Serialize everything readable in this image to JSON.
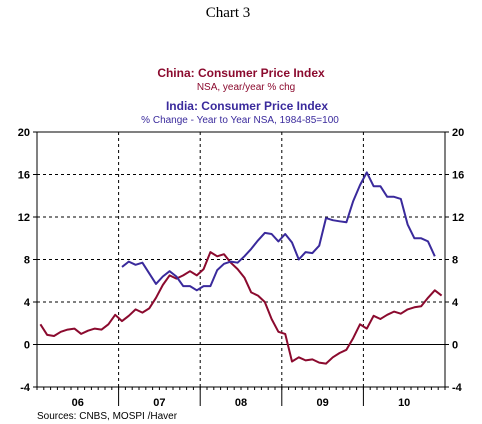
{
  "page_title": "Chart 3",
  "source": "Sources: CNBS, MOSPI /Haver",
  "colors": {
    "china": "#8b0a2e",
    "india": "#3a2a9c",
    "grid": "#000000",
    "background": "#ffffff"
  },
  "chart_data": {
    "type": "line",
    "title": "Chart 3",
    "legend_placement": "top-center",
    "grid": true,
    "y_left": {
      "min": -4,
      "max": 20,
      "ticks": [
        "20",
        "16",
        "12",
        "8",
        "4",
        "0",
        "-4"
      ]
    },
    "y_right": {
      "min": -4,
      "max": 20,
      "ticks": [
        "20",
        "16",
        "12",
        "8",
        "4",
        "0",
        "-4"
      ]
    },
    "x_categories": [
      "06",
      "07",
      "08",
      "09",
      "10"
    ],
    "x_range": [
      "2006-01",
      "2010-12"
    ],
    "series": [
      {
        "name": "China: Consumer Price Index",
        "subtitle": "NSA, year/year % chg",
        "color": "#8b0a2e",
        "points": [
          [
            "2006-01",
            1.9
          ],
          [
            "2006-02",
            0.9
          ],
          [
            "2006-03",
            0.8
          ],
          [
            "2006-04",
            1.2
          ],
          [
            "2006-05",
            1.4
          ],
          [
            "2006-06",
            1.5
          ],
          [
            "2006-07",
            1.0
          ],
          [
            "2006-08",
            1.3
          ],
          [
            "2006-09",
            1.5
          ],
          [
            "2006-10",
            1.4
          ],
          [
            "2006-11",
            1.9
          ],
          [
            "2006-12",
            2.8
          ],
          [
            "2007-01",
            2.2
          ],
          [
            "2007-02",
            2.7
          ],
          [
            "2007-03",
            3.3
          ],
          [
            "2007-04",
            3.0
          ],
          [
            "2007-05",
            3.4
          ],
          [
            "2007-06",
            4.4
          ],
          [
            "2007-07",
            5.6
          ],
          [
            "2007-08",
            6.5
          ],
          [
            "2007-09",
            6.2
          ],
          [
            "2007-10",
            6.5
          ],
          [
            "2007-11",
            6.9
          ],
          [
            "2007-12",
            6.5
          ],
          [
            "2008-01",
            7.1
          ],
          [
            "2008-02",
            8.7
          ],
          [
            "2008-03",
            8.3
          ],
          [
            "2008-04",
            8.5
          ],
          [
            "2008-05",
            7.7
          ],
          [
            "2008-06",
            7.1
          ],
          [
            "2008-07",
            6.3
          ],
          [
            "2008-08",
            4.9
          ],
          [
            "2008-09",
            4.6
          ],
          [
            "2008-10",
            4.0
          ],
          [
            "2008-11",
            2.4
          ],
          [
            "2008-12",
            1.2
          ],
          [
            "2009-01",
            1.0
          ],
          [
            "2009-02",
            -1.6
          ],
          [
            "2009-03",
            -1.2
          ],
          [
            "2009-04",
            -1.5
          ],
          [
            "2009-05",
            -1.4
          ],
          [
            "2009-06",
            -1.7
          ],
          [
            "2009-07",
            -1.8
          ],
          [
            "2009-08",
            -1.2
          ],
          [
            "2009-09",
            -0.8
          ],
          [
            "2009-10",
            -0.5
          ],
          [
            "2009-11",
            0.6
          ],
          [
            "2009-12",
            1.9
          ],
          [
            "2010-01",
            1.5
          ],
          [
            "2010-02",
            2.7
          ],
          [
            "2010-03",
            2.4
          ],
          [
            "2010-04",
            2.8
          ],
          [
            "2010-05",
            3.1
          ],
          [
            "2010-06",
            2.9
          ],
          [
            "2010-07",
            3.3
          ],
          [
            "2010-08",
            3.5
          ],
          [
            "2010-09",
            3.6
          ],
          [
            "2010-10",
            4.4
          ],
          [
            "2010-11",
            5.1
          ],
          [
            "2010-12",
            4.6
          ]
        ]
      },
      {
        "name": "India: Consumer Price Index",
        "subtitle": "% Change - Year to Year   NSA, 1984-85=100",
        "color": "#3a2a9c",
        "points": [
          [
            "2007-01",
            7.3
          ],
          [
            "2007-02",
            7.8
          ],
          [
            "2007-03",
            7.5
          ],
          [
            "2007-04",
            7.7
          ],
          [
            "2007-05",
            6.7
          ],
          [
            "2007-06",
            5.7
          ],
          [
            "2007-07",
            6.4
          ],
          [
            "2007-08",
            6.9
          ],
          [
            "2007-09",
            6.4
          ],
          [
            "2007-10",
            5.5
          ],
          [
            "2007-11",
            5.5
          ],
          [
            "2007-12",
            5.1
          ],
          [
            "2008-01",
            5.5
          ],
          [
            "2008-02",
            5.5
          ],
          [
            "2008-03",
            7.0
          ],
          [
            "2008-04",
            7.6
          ],
          [
            "2008-05",
            7.8
          ],
          [
            "2008-06",
            7.7
          ],
          [
            "2008-07",
            8.3
          ],
          [
            "2008-08",
            9.0
          ],
          [
            "2008-09",
            9.8
          ],
          [
            "2008-10",
            10.5
          ],
          [
            "2008-11",
            10.4
          ],
          [
            "2008-12",
            9.7
          ],
          [
            "2009-01",
            10.4
          ],
          [
            "2009-02",
            9.6
          ],
          [
            "2009-03",
            8.0
          ],
          [
            "2009-04",
            8.7
          ],
          [
            "2009-05",
            8.6
          ],
          [
            "2009-06",
            9.3
          ],
          [
            "2009-07",
            11.9
          ],
          [
            "2009-08",
            11.7
          ],
          [
            "2009-09",
            11.6
          ],
          [
            "2009-10",
            11.5
          ],
          [
            "2009-11",
            13.5
          ],
          [
            "2009-12",
            15.0
          ],
          [
            "2010-01",
            16.2
          ],
          [
            "2010-02",
            14.9
          ],
          [
            "2010-03",
            14.9
          ],
          [
            "2010-04",
            13.9
          ],
          [
            "2010-05",
            13.9
          ],
          [
            "2010-06",
            13.7
          ],
          [
            "2010-07",
            11.3
          ],
          [
            "2010-08",
            10.0
          ],
          [
            "2010-09",
            10.0
          ],
          [
            "2010-10",
            9.7
          ],
          [
            "2010-11",
            8.3
          ]
        ]
      }
    ]
  }
}
